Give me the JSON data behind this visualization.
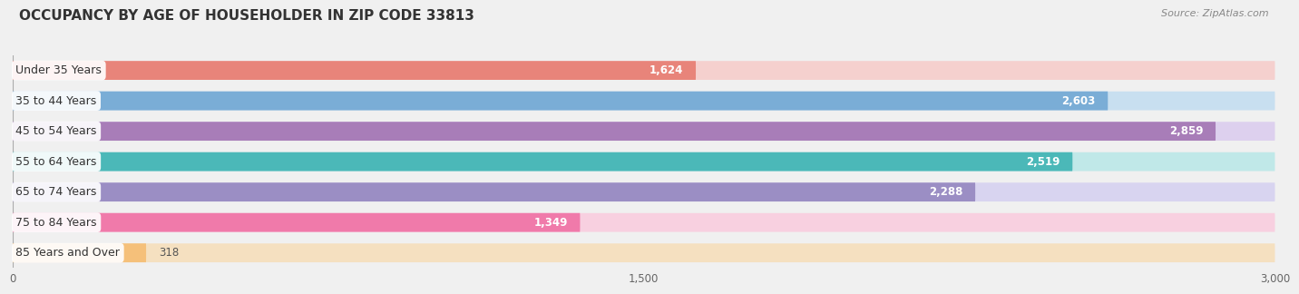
{
  "title": "OCCUPANCY BY AGE OF HOUSEHOLDER IN ZIP CODE 33813",
  "source": "Source: ZipAtlas.com",
  "categories": [
    "Under 35 Years",
    "35 to 44 Years",
    "45 to 54 Years",
    "55 to 64 Years",
    "65 to 74 Years",
    "75 to 84 Years",
    "85 Years and Over"
  ],
  "values": [
    1624,
    2603,
    2859,
    2519,
    2288,
    1349,
    318
  ],
  "bar_colors": [
    "#E8847A",
    "#7AADD6",
    "#A87DB8",
    "#4BB8B8",
    "#9B8EC4",
    "#F07AAA",
    "#F5C07A"
  ],
  "bar_bg_colors": [
    "#F5D0CE",
    "#C8DFF0",
    "#DDD0EE",
    "#C0E8E8",
    "#D8D4F0",
    "#F8D0E0",
    "#F5E0C0"
  ],
  "xlim": [
    0,
    3000
  ],
  "xticks": [
    0,
    1500,
    3000
  ],
  "title_fontsize": 11,
  "label_fontsize": 9,
  "value_fontsize": 8.5,
  "bg_color": "#f0f0f0"
}
